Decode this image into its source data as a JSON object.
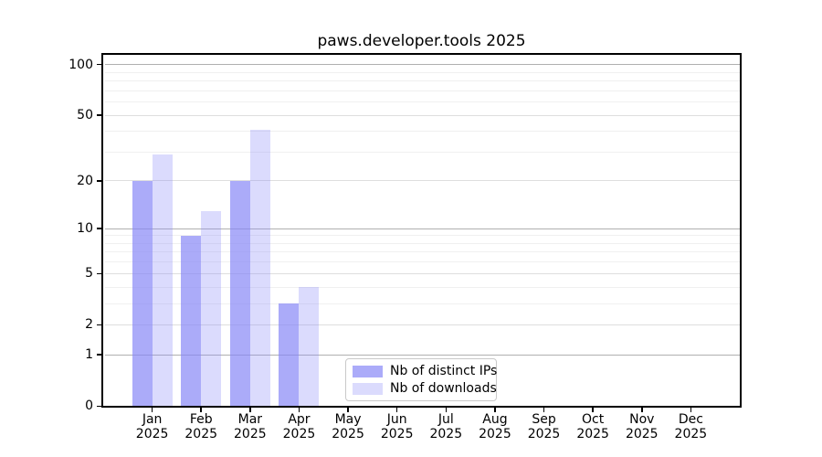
{
  "title": "paws.developer.tools 2025",
  "legend": {
    "items": [
      {
        "label": "Nb of distinct IPs",
        "alpha": 0.7
      },
      {
        "label": "Nb of downloads",
        "alpha": 0.3
      }
    ]
  },
  "colors": {
    "bar_base": "#8888f7",
    "ips_fill": "rgba(136,136,247,0.7)",
    "downloads_fill": "rgba(136,136,247,0.3)",
    "decade_grid": "#b0b0b0",
    "labeled_grid": "#dedede",
    "minor_grid": "#f0f0f0",
    "axis": "#000000"
  },
  "chart_data": {
    "type": "bar",
    "title": "paws.developer.tools 2025",
    "categories": [
      "Jan",
      "Feb",
      "Mar",
      "Apr",
      "May",
      "Jun",
      "Jul",
      "Aug",
      "Sep",
      "Oct",
      "Nov",
      "Dec"
    ],
    "year_label": "2025",
    "series": [
      {
        "name": "Nb of distinct IPs",
        "values": [
          20,
          9,
          20,
          3,
          0,
          0,
          0,
          0,
          0,
          0,
          0,
          0
        ]
      },
      {
        "name": "Nb of downloads",
        "values": [
          29,
          13,
          41,
          4,
          0,
          0,
          0,
          0,
          0,
          0,
          0,
          0
        ]
      }
    ],
    "xlabel": "",
    "ylabel": "",
    "yscale": "log1p",
    "ylim": [
      0,
      115
    ],
    "y_major_ticks": [
      0,
      1,
      2,
      5,
      10,
      20,
      50,
      100
    ],
    "y_decade_gridlines": [
      1,
      10,
      100
    ],
    "y_minor_gridlines": [
      3,
      4,
      6,
      7,
      8,
      9,
      30,
      40,
      60,
      70,
      80,
      90
    ],
    "grid": true,
    "legend_position": "lower center"
  }
}
